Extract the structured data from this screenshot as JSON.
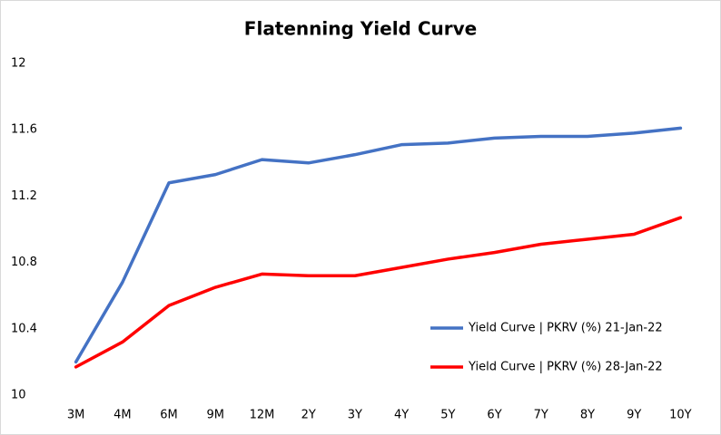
{
  "chart_data": {
    "type": "line",
    "title": "Flatenning Yield Curve",
    "categories": [
      "3M",
      "4M",
      "6M",
      "9M",
      "12M",
      "2Y",
      "3Y",
      "4Y",
      "5Y",
      "6Y",
      "7Y",
      "8Y",
      "9Y",
      "10Y"
    ],
    "series": [
      {
        "name": "Yield Curve | PKRV (%) 21-Jan-22",
        "color": "#4472c4",
        "values": [
          10.2,
          10.68,
          11.28,
          11.33,
          11.42,
          11.4,
          11.45,
          11.51,
          11.52,
          11.55,
          11.56,
          11.56,
          11.58,
          11.61
        ]
      },
      {
        "name": "Yield Curve | PKRV (%) 28-Jan-22",
        "color": "#ff0000",
        "values": [
          10.17,
          10.32,
          10.54,
          10.65,
          10.73,
          10.72,
          10.72,
          10.77,
          10.82,
          10.86,
          10.91,
          10.94,
          10.97,
          11.07
        ]
      }
    ],
    "ylim": [
      10,
      12
    ],
    "yticks": [
      10,
      10.4,
      10.8,
      11.2,
      11.6,
      12
    ],
    "grid": false,
    "legend": "lower-right"
  }
}
